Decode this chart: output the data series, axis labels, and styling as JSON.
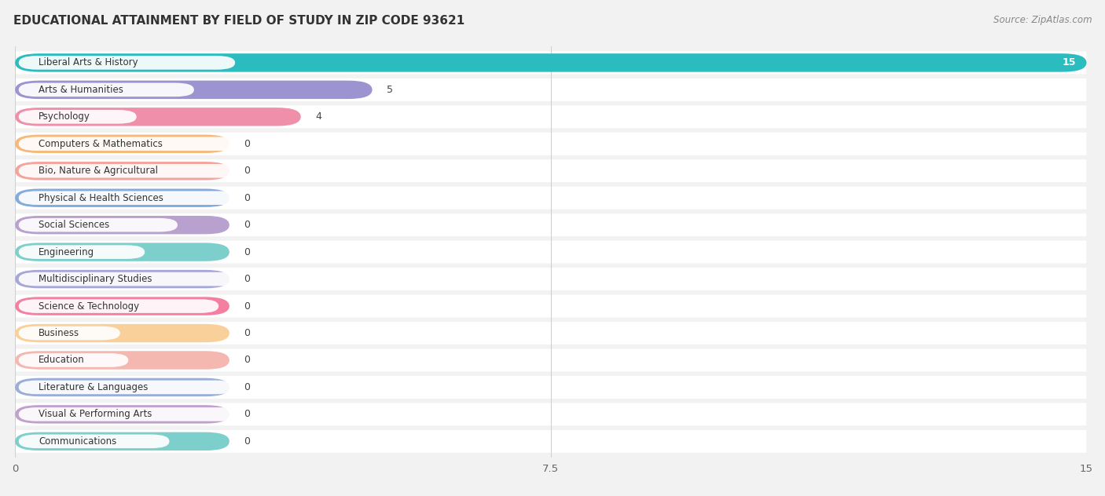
{
  "title": "EDUCATIONAL ATTAINMENT BY FIELD OF STUDY IN ZIP CODE 93621",
  "source": "Source: ZipAtlas.com",
  "categories": [
    "Liberal Arts & History",
    "Arts & Humanities",
    "Psychology",
    "Computers & Mathematics",
    "Bio, Nature & Agricultural",
    "Physical & Health Sciences",
    "Social Sciences",
    "Engineering",
    "Multidisciplinary Studies",
    "Science & Technology",
    "Business",
    "Education",
    "Literature & Languages",
    "Visual & Performing Arts",
    "Communications"
  ],
  "values": [
    15,
    5,
    4,
    0,
    0,
    0,
    0,
    0,
    0,
    0,
    0,
    0,
    0,
    0,
    0
  ],
  "bar_colors": [
    "#2BBCBF",
    "#9B94D1",
    "#F08FAA",
    "#F5B97A",
    "#F4A49A",
    "#85ABDB",
    "#B8A0CF",
    "#7DCFCC",
    "#A8A8D8",
    "#F47FA0",
    "#FAD09A",
    "#F4B8B0",
    "#9AAED8",
    "#C0A0CC",
    "#7DCFCC"
  ],
  "zero_bar_width": 3.0,
  "xlim": [
    0,
    15
  ],
  "xticks": [
    0,
    7.5,
    15
  ],
  "background_color": "#f2f2f2",
  "row_bg_color": "#ffffff",
  "grid_color": "#d0d0d0",
  "label_fontsize": 8.5,
  "value_fontsize": 9.0,
  "title_fontsize": 11,
  "source_fontsize": 8.5
}
